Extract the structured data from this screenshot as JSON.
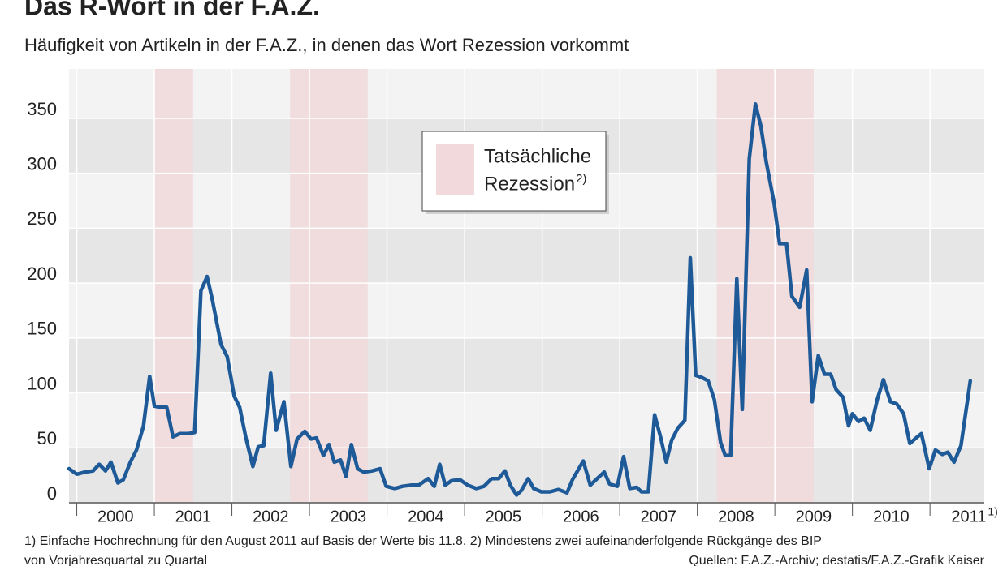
{
  "chart_data": {
    "type": "line",
    "title": "Das R-Wort in der F.A.Z.",
    "subtitle": "Häufigkeit von Artikeln in der F.A.Z., in denen das Wort Rezession vorkommt",
    "footnotes": [
      "1) Einfache Hochrechnung für den August 2011 auf Basis der Werte bis 11.8. 2) Mindestens zwei aufeinanderfolgende Rückgänge des BIP",
      "von Vorjahresquartal zu Quartal"
    ],
    "source": "Quellen: F.A.Z.-Archiv; destatis/F.A.Z.-Grafik Kaiser",
    "legend_lines": [
      "Tatsächliche",
      "Rezession"
    ],
    "legend_note": "2)",
    "recession_color": "#f1d9dc",
    "recessions": [
      {
        "start": 2001.0,
        "end": 2001.5
      },
      {
        "start": 2002.75,
        "end": 2003.75
      },
      {
        "start": 2008.25,
        "end": 2009.5
      }
    ],
    "xlim": [
      1999.9,
      2011.7
    ],
    "xticks": [
      {
        "value": 2000.5,
        "label": "2000"
      },
      {
        "value": 2001.5,
        "label": "2001"
      },
      {
        "value": 2002.5,
        "label": "2002"
      },
      {
        "value": 2003.5,
        "label": "2003"
      },
      {
        "value": 2004.5,
        "label": "2004"
      },
      {
        "value": 2005.5,
        "label": "2005"
      },
      {
        "value": 2006.5,
        "label": "2006"
      },
      {
        "value": 2007.5,
        "label": "2007"
      },
      {
        "value": 2008.5,
        "label": "2008"
      },
      {
        "value": 2009.5,
        "label": "2009"
      },
      {
        "value": 2010.5,
        "label": "2010"
      },
      {
        "value": 2011.5,
        "label": "2011"
      }
    ],
    "xtick_note": "1)",
    "ylim": [
      0,
      395
    ],
    "yticks": [
      0,
      50,
      100,
      150,
      200,
      250,
      300,
      350
    ],
    "grid": true,
    "x": [
      1999.9,
      2000.0,
      2000.11,
      2000.21,
      2000.29,
      2000.37,
      2000.44,
      2000.53,
      2000.6,
      2000.69,
      2000.77,
      2000.86,
      2000.94,
      2001.0,
      2001.07,
      2001.16,
      2001.24,
      2001.33,
      2001.44,
      2001.52,
      2001.6,
      2001.68,
      2001.75,
      2001.86,
      2001.94,
      2002.03,
      2002.1,
      2002.18,
      2002.27,
      2002.34,
      2002.41,
      2002.5,
      2002.57,
      2002.67,
      2002.76,
      2002.84,
      2002.94,
      2003.02,
      2003.09,
      2003.18,
      2003.25,
      2003.32,
      2003.4,
      2003.47,
      2003.54,
      2003.62,
      2003.7,
      2003.81,
      2003.91,
      2003.99,
      2004.1,
      2004.2,
      2004.31,
      2004.41,
      2004.53,
      2004.61,
      2004.68,
      2004.75,
      2004.83,
      2004.94,
      2005.04,
      2005.15,
      2005.25,
      2005.35,
      2005.44,
      2005.52,
      2005.59,
      2005.67,
      2005.73,
      2005.82,
      2005.89,
      2005.99,
      2006.1,
      2006.21,
      2006.32,
      2006.39,
      2006.53,
      2006.62,
      2006.71,
      2006.8,
      2006.87,
      2006.97,
      2007.05,
      2007.13,
      2007.22,
      2007.28,
      2007.37,
      2007.45,
      2007.53,
      2007.6,
      2007.67,
      2007.75,
      2007.84,
      2007.91,
      2007.98,
      2008.06,
      2008.14,
      2008.22,
      2008.3,
      2008.36,
      2008.43,
      2008.51,
      2008.58,
      2008.67,
      2008.75,
      2008.82,
      2008.89,
      2008.99,
      2009.06,
      2009.15,
      2009.22,
      2009.32,
      2009.41,
      2009.48,
      2009.56,
      2009.64,
      2009.72,
      2009.79,
      2009.88,
      2009.95,
      2010.0,
      2010.08,
      2010.15,
      2010.23,
      2010.32,
      2010.4,
      2010.49,
      2010.57,
      2010.66,
      2010.74,
      2010.82,
      2010.89,
      2010.99,
      2011.07,
      2011.16,
      2011.23,
      2011.31,
      2011.4,
      2011.52
    ],
    "series": [
      {
        "name": "Rezession",
        "color": "#1d5a97",
        "values": [
          31,
          26,
          28,
          29,
          35,
          29,
          37,
          18,
          21,
          37,
          48,
          70,
          115,
          88,
          87,
          87,
          60,
          63,
          63,
          64,
          193,
          206,
          184,
          144,
          133,
          97,
          87,
          59,
          33,
          51,
          52,
          118,
          66,
          92,
          33,
          58,
          65,
          58,
          59,
          43,
          53,
          37,
          39,
          24,
          53,
          31,
          28,
          29,
          31,
          15,
          13,
          15,
          16,
          16,
          22,
          15,
          35,
          16,
          20,
          21,
          16,
          13,
          15,
          22,
          22,
          29,
          16,
          7,
          11,
          22,
          13,
          10,
          10,
          12,
          9,
          21,
          38,
          16,
          22,
          28,
          17,
          15,
          42,
          13,
          14,
          10,
          10,
          80,
          59,
          37,
          57,
          68,
          75,
          223,
          116,
          114,
          111,
          94,
          55,
          43,
          43,
          204,
          85,
          313,
          363,
          343,
          310,
          273,
          236,
          236,
          188,
          178,
          212,
          92,
          134,
          117,
          117,
          103,
          96,
          70,
          81,
          74,
          77,
          66,
          94,
          112,
          92,
          90,
          81,
          54,
          59,
          63,
          31,
          48,
          44,
          46,
          37,
          52,
          111
        ]
      }
    ]
  }
}
